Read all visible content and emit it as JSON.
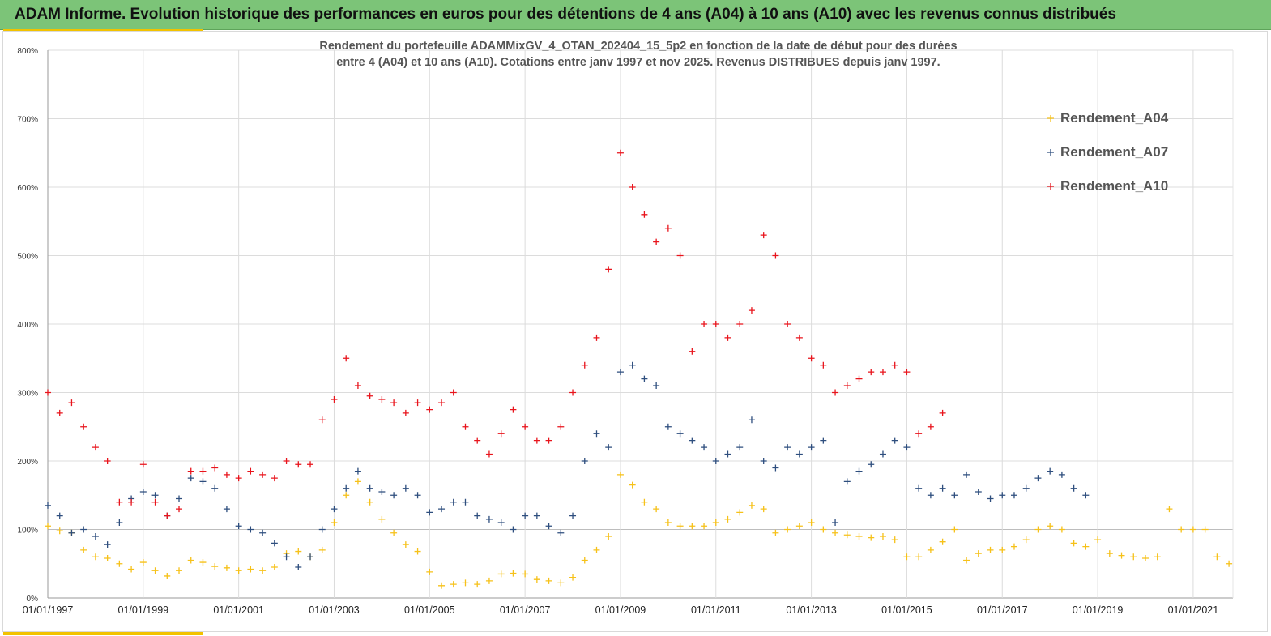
{
  "banner": {
    "title": "ADAM Informe. Evolution historique des performances en euros pour des détentions de 4 ans (A04) à 10 ans (A10) avec les revenus connus distribués"
  },
  "colors": {
    "banner": "#7cc478",
    "accent": "#f2c200",
    "A04": "#f6c119",
    "A07": "#2e4e7e",
    "A10": "#e8141c"
  },
  "chart_data": {
    "type": "scatter",
    "title": "Rendement du portefeuille ADAMMixGV_4_OTAN_202404_15_5p2  en fonction de la date de début pour des durées",
    "subtitle": "entre 4 (A04)  et 10 ans (A10). Cotations  entre janv 1997 et nov 2025. Revenus DISTRIBUES depuis janv 1997.",
    "xlabel": "",
    "ylabel": "",
    "xlim": [
      "01/01/1997",
      "01/11/2021"
    ],
    "ylim": [
      0,
      800
    ],
    "y_unit": "%",
    "grid": true,
    "legend_position": "top-right",
    "marker": "plus",
    "x_tick_labels": [
      "01/01/1997",
      "01/01/1999",
      "01/01/2001",
      "01/01/2003",
      "01/01/2005",
      "01/01/2007",
      "01/01/2009",
      "01/01/2011",
      "01/01/2013",
      "01/01/2015",
      "01/01/2017",
      "01/01/2019",
      "01/01/2021"
    ],
    "y_tick_labels": [
      "0%",
      "100%",
      "200%",
      "300%",
      "400%",
      "500%",
      "600%",
      "700%",
      "800%"
    ],
    "series": [
      {
        "name": "Rendement_A04",
        "color": "#f6c119",
        "x": [
          "1997-01",
          "1997-04",
          "1997-07",
          "1997-10",
          "1998-01",
          "1998-04",
          "1998-07",
          "1998-10",
          "1999-01",
          "1999-04",
          "1999-07",
          "1999-10",
          "2000-01",
          "2000-04",
          "2000-07",
          "2000-10",
          "2001-01",
          "2001-04",
          "2001-07",
          "2001-10",
          "2002-01",
          "2002-04",
          "2002-07",
          "2002-10",
          "2003-01",
          "2003-04",
          "2003-07",
          "2003-10",
          "2004-01",
          "2004-04",
          "2004-07",
          "2004-10",
          "2005-01",
          "2005-04",
          "2005-07",
          "2005-10",
          "2006-01",
          "2006-04",
          "2006-07",
          "2006-10",
          "2007-01",
          "2007-04",
          "2007-07",
          "2007-10",
          "2008-01",
          "2008-04",
          "2008-07",
          "2008-10",
          "2009-01",
          "2009-04",
          "2009-07",
          "2009-10",
          "2010-01",
          "2010-04",
          "2010-07",
          "2010-10",
          "2011-01",
          "2011-04",
          "2011-07",
          "2011-10",
          "2012-01",
          "2012-04",
          "2012-07",
          "2012-10",
          "2013-01",
          "2013-04",
          "2013-07",
          "2013-10",
          "2014-01",
          "2014-04",
          "2014-07",
          "2014-10",
          "2015-01",
          "2015-04",
          "2015-07",
          "2015-10",
          "2016-01",
          "2016-04",
          "2016-07",
          "2016-10",
          "2017-01",
          "2017-04",
          "2017-07",
          "2017-10",
          "2018-01",
          "2018-04",
          "2018-07",
          "2018-10",
          "2019-01",
          "2019-04",
          "2019-07",
          "2019-10",
          "2020-01",
          "2020-04",
          "2020-07",
          "2020-10",
          "2021-01",
          "2021-04",
          "2021-07",
          "2021-10"
        ],
        "values": [
          105,
          98,
          95,
          70,
          60,
          58,
          50,
          42,
          52,
          40,
          32,
          40,
          55,
          52,
          46,
          44,
          40,
          42,
          40,
          45,
          65,
          68,
          60,
          70,
          110,
          150,
          170,
          140,
          115,
          95,
          78,
          68,
          38,
          18,
          20,
          22,
          20,
          25,
          35,
          36,
          35,
          27,
          25,
          22,
          30,
          55,
          70,
          90,
          180,
          165,
          140,
          130,
          110,
          105,
          105,
          105,
          110,
          115,
          125,
          135,
          130,
          95,
          100,
          105,
          110,
          100,
          95,
          92,
          90,
          88,
          90,
          85,
          60,
          60,
          70,
          82,
          100,
          55,
          65,
          70,
          70,
          75,
          85,
          100,
          105,
          100,
          80,
          75,
          85,
          65,
          62,
          60,
          58,
          60,
          130,
          100,
          100,
          100,
          60,
          50
        ]
      },
      {
        "name": "Rendement_A07",
        "color": "#2e4e7e",
        "x": [
          "1997-01",
          "1997-04",
          "1997-07",
          "1997-10",
          "1998-01",
          "1998-04",
          "1998-07",
          "1998-10",
          "1999-01",
          "1999-04",
          "1999-07",
          "1999-10",
          "2000-01",
          "2000-04",
          "2000-07",
          "2000-10",
          "2001-01",
          "2001-04",
          "2001-07",
          "2001-10",
          "2002-01",
          "2002-04",
          "2002-07",
          "2002-10",
          "2003-01",
          "2003-04",
          "2003-07",
          "2003-10",
          "2004-01",
          "2004-04",
          "2004-07",
          "2004-10",
          "2005-01",
          "2005-04",
          "2005-07",
          "2005-10",
          "2006-01",
          "2006-04",
          "2006-07",
          "2006-10",
          "2007-01",
          "2007-04",
          "2007-07",
          "2007-10",
          "2008-01",
          "2008-04",
          "2008-07",
          "2008-10",
          "2009-01",
          "2009-04",
          "2009-07",
          "2009-10",
          "2010-01",
          "2010-04",
          "2010-07",
          "2010-10",
          "2011-01",
          "2011-04",
          "2011-07",
          "2011-10",
          "2012-01",
          "2012-04",
          "2012-07",
          "2012-10",
          "2013-01",
          "2013-04",
          "2013-07",
          "2013-10",
          "2014-01",
          "2014-04",
          "2014-07",
          "2014-10",
          "2015-01",
          "2015-04",
          "2015-07",
          "2015-10",
          "2016-01",
          "2016-04",
          "2016-07",
          "2016-10",
          "2017-01",
          "2017-04",
          "2017-07",
          "2017-10",
          "2018-01",
          "2018-04",
          "2018-07",
          "2018-10"
        ],
        "values": [
          135,
          120,
          95,
          100,
          90,
          78,
          110,
          145,
          155,
          150,
          120,
          145,
          175,
          170,
          160,
          130,
          105,
          100,
          95,
          80,
          60,
          45,
          60,
          100,
          130,
          160,
          185,
          160,
          155,
          150,
          160,
          150,
          125,
          130,
          140,
          140,
          120,
          115,
          110,
          100,
          120,
          120,
          105,
          95,
          120,
          200,
          240,
          220,
          330,
          340,
          320,
          310,
          250,
          240,
          230,
          220,
          200,
          210,
          220,
          260,
          200,
          190,
          220,
          210,
          220,
          230,
          110,
          170,
          185,
          195,
          210,
          230,
          220,
          160,
          150,
          160,
          150,
          180,
          155,
          145,
          150,
          150,
          160,
          175,
          185,
          180,
          160,
          150
        ]
      },
      {
        "name": "Rendement_A10",
        "color": "#e8141c",
        "x": [
          "1997-01",
          "1997-04",
          "1997-07",
          "1997-10",
          "1998-01",
          "1998-04",
          "1998-07",
          "1998-10",
          "1999-01",
          "1999-04",
          "1999-07",
          "1999-10",
          "2000-01",
          "2000-04",
          "2000-07",
          "2000-10",
          "2001-01",
          "2001-04",
          "2001-07",
          "2001-10",
          "2002-01",
          "2002-04",
          "2002-07",
          "2002-10",
          "2003-01",
          "2003-04",
          "2003-07",
          "2003-10",
          "2004-01",
          "2004-04",
          "2004-07",
          "2004-10",
          "2005-01",
          "2005-04",
          "2005-07",
          "2005-10",
          "2006-01",
          "2006-04",
          "2006-07",
          "2006-10",
          "2007-01",
          "2007-04",
          "2007-07",
          "2007-10",
          "2008-01",
          "2008-04",
          "2008-07",
          "2008-10",
          "2009-01",
          "2009-04",
          "2009-07",
          "2009-10",
          "2010-01",
          "2010-04",
          "2010-07",
          "2010-10",
          "2011-01",
          "2011-04",
          "2011-07",
          "2011-10",
          "2012-01",
          "2012-04",
          "2012-07",
          "2012-10",
          "2013-01",
          "2013-04",
          "2013-07",
          "2013-10",
          "2014-01",
          "2014-04",
          "2014-07",
          "2014-10",
          "2015-01",
          "2015-04",
          "2015-07",
          "2015-10"
        ],
        "values": [
          300,
          270,
          285,
          250,
          220,
          200,
          140,
          140,
          195,
          140,
          120,
          130,
          185,
          185,
          190,
          180,
          175,
          185,
          180,
          175,
          200,
          195,
          195,
          260,
          290,
          350,
          310,
          295,
          290,
          285,
          270,
          285,
          275,
          285,
          300,
          250,
          230,
          210,
          240,
          275,
          250,
          230,
          230,
          250,
          300,
          340,
          380,
          480,
          650,
          600,
          560,
          520,
          540,
          500,
          360,
          400,
          400,
          380,
          400,
          420,
          530,
          500,
          400,
          380,
          350,
          340,
          300,
          310,
          320,
          330,
          330,
          340,
          330,
          240,
          250,
          270
        ]
      }
    ]
  }
}
